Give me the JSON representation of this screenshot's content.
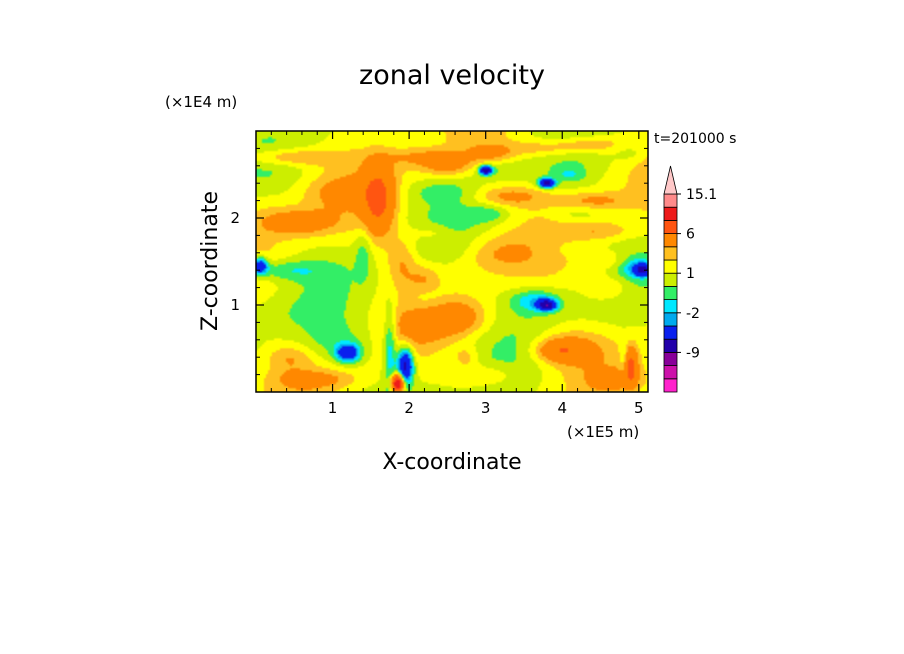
{
  "chart_data": {
    "type": "heatmap",
    "title": "zonal velocity",
    "xlabel": "X-coordinate",
    "ylabel": "Z-coordinate",
    "x_unit": "(×1E5 m)",
    "y_unit": "(×1E4 m)",
    "time_label": "t=201000 s",
    "x_ticks": [
      1,
      2,
      3,
      4,
      5
    ],
    "y_ticks": [
      1,
      2
    ],
    "xlim": [
      0,
      5.12
    ],
    "ylim": [
      0,
      3.0
    ],
    "grid": false,
    "colorbar": {
      "levels": [
        -15,
        -12,
        -9,
        -6,
        -3,
        -2,
        -1,
        0,
        1,
        2,
        3,
        6,
        9,
        12,
        15.1
      ],
      "tick_labels": [
        "15.1",
        "6",
        "1",
        "-2",
        "-9"
      ],
      "colors": [
        "#ff22cc",
        "#cc11aa",
        "#880099",
        "#2200aa",
        "#0a20ee",
        "#00aaee",
        "#00e8ff",
        "#33ee66",
        "#ccee00",
        "#ffff00",
        "#ffc020",
        "#ff8800",
        "#ff5511",
        "#ee1a1a",
        "#ff8a8a",
        "#ffc8c8"
      ],
      "extend": "both"
    },
    "blobs": [
      {
        "x": 0.45,
        "y": 2.7,
        "rx": 0.6,
        "ry": 0.1,
        "v": 2.5
      },
      {
        "x": 0.35,
        "y": 1.4,
        "rx": 0.55,
        "ry": 0.12,
        "v": -2
      },
      {
        "x": 0.05,
        "y": 1.45,
        "rx": 0.1,
        "ry": 0.1,
        "v": -6
      },
      {
        "x": 0.3,
        "y": 0.9,
        "rx": 0.6,
        "ry": 0.2,
        "v": -0.5
      },
      {
        "x": 0.15,
        "y": 2.15,
        "rx": 0.3,
        "ry": 0.2,
        "v": 0.5
      },
      {
        "x": 1.1,
        "y": 2.3,
        "rx": 0.5,
        "ry": 0.18,
        "v": 1.5
      },
      {
        "x": 0.55,
        "y": 1.95,
        "rx": 0.5,
        "ry": 0.15,
        "v": 3
      },
      {
        "x": 1.05,
        "y": 0.55,
        "rx": 0.5,
        "ry": 0.25,
        "v": -1.5
      },
      {
        "x": 1.2,
        "y": 0.45,
        "rx": 0.15,
        "ry": 0.1,
        "v": -6
      },
      {
        "x": 1.75,
        "y": 0.5,
        "rx": 0.08,
        "ry": 0.5,
        "v": -3
      },
      {
        "x": 1.95,
        "y": 0.3,
        "rx": 0.1,
        "ry": 0.2,
        "v": -8
      },
      {
        "x": 1.85,
        "y": 0.1,
        "rx": 0.08,
        "ry": 0.1,
        "v": 12
      },
      {
        "x": 1.6,
        "y": 2.2,
        "rx": 0.2,
        "ry": 0.4,
        "v": 5
      },
      {
        "x": 2.2,
        "y": 2.7,
        "rx": 0.5,
        "ry": 0.1,
        "v": 1.8
      },
      {
        "x": 2.5,
        "y": 2.6,
        "rx": 0.35,
        "ry": 0.12,
        "v": 2.5
      },
      {
        "x": 2.4,
        "y": 2.3,
        "rx": 0.5,
        "ry": 0.12,
        "v": -1
      },
      {
        "x": 2.45,
        "y": 1.9,
        "rx": 0.35,
        "ry": 0.12,
        "v": -1
      },
      {
        "x": 2.35,
        "y": 1.85,
        "rx": 0.3,
        "ry": 0.12,
        "v": 1.8
      },
      {
        "x": 2.25,
        "y": 1.05,
        "rx": 0.3,
        "ry": 0.18,
        "v": -1
      },
      {
        "x": 2.6,
        "y": 0.85,
        "rx": 0.4,
        "ry": 0.2,
        "v": 3
      },
      {
        "x": 2.1,
        "y": 0.75,
        "rx": 0.3,
        "ry": 0.2,
        "v": 1.5
      },
      {
        "x": 2.75,
        "y": 0.4,
        "rx": 0.15,
        "ry": 0.12,
        "v": 1.5
      },
      {
        "x": 2.2,
        "y": 1.3,
        "rx": 0.2,
        "ry": 0.15,
        "v": 1.5
      },
      {
        "x": 2.5,
        "y": 1.65,
        "rx": 0.4,
        "ry": 0.12,
        "v": -0.5
      },
      {
        "x": 3.1,
        "y": 1.6,
        "rx": 0.45,
        "ry": 0.2,
        "v": 1.5
      },
      {
        "x": 3.3,
        "y": 2.25,
        "rx": 0.5,
        "ry": 0.12,
        "v": 2.5
      },
      {
        "x": 3.05,
        "y": 2.05,
        "rx": 0.25,
        "ry": 0.1,
        "v": -1.5
      },
      {
        "x": 3.2,
        "y": 2.55,
        "rx": 0.4,
        "ry": 0.1,
        "v": -1
      },
      {
        "x": 3.05,
        "y": 2.75,
        "rx": 0.3,
        "ry": 0.1,
        "v": 2
      },
      {
        "x": 3.75,
        "y": 2.8,
        "rx": 0.5,
        "ry": 0.1,
        "v": 1.8
      },
      {
        "x": 4.35,
        "y": 2.85,
        "rx": 0.45,
        "ry": 0.1,
        "v": 2.2
      },
      {
        "x": 3.0,
        "y": 2.55,
        "rx": 0.08,
        "ry": 0.05,
        "v": -9
      },
      {
        "x": 3.8,
        "y": 2.4,
        "rx": 0.1,
        "ry": 0.05,
        "v": -9
      },
      {
        "x": 4.1,
        "y": 2.5,
        "rx": 0.2,
        "ry": 0.08,
        "v": -1.5
      },
      {
        "x": 4.2,
        "y": 2.05,
        "rx": 0.3,
        "ry": 0.1,
        "v": -1
      },
      {
        "x": 4.4,
        "y": 2.2,
        "rx": 0.45,
        "ry": 0.1,
        "v": 2
      },
      {
        "x": 4.5,
        "y": 1.85,
        "rx": 0.4,
        "ry": 0.1,
        "v": 1.6
      },
      {
        "x": 4.0,
        "y": 1.65,
        "rx": 0.3,
        "ry": 0.12,
        "v": -0.5
      },
      {
        "x": 4.7,
        "y": 1.5,
        "rx": 0.35,
        "ry": 0.12,
        "v": 1.5
      },
      {
        "x": 4.95,
        "y": 1.45,
        "rx": 0.25,
        "ry": 0.12,
        "v": -2.5
      },
      {
        "x": 5.05,
        "y": 1.4,
        "rx": 0.12,
        "ry": 0.07,
        "v": -6
      },
      {
        "x": 3.65,
        "y": 1.05,
        "rx": 0.5,
        "ry": 0.25,
        "v": -0.8
      },
      {
        "x": 3.65,
        "y": 1.05,
        "rx": 0.3,
        "ry": 0.12,
        "v": -2.5
      },
      {
        "x": 3.8,
        "y": 1.0,
        "rx": 0.12,
        "ry": 0.06,
        "v": -8
      },
      {
        "x": 4.6,
        "y": 1.2,
        "rx": 0.3,
        "ry": 0.15,
        "v": 1.8
      },
      {
        "x": 4.1,
        "y": 0.5,
        "rx": 0.45,
        "ry": 0.22,
        "v": 2.2
      },
      {
        "x": 3.95,
        "y": 0.48,
        "rx": 0.3,
        "ry": 0.12,
        "v": 3
      },
      {
        "x": 3.0,
        "y": 0.2,
        "rx": 0.4,
        "ry": 0.12,
        "v": 1.5
      },
      {
        "x": 4.7,
        "y": 0.15,
        "rx": 0.35,
        "ry": 0.12,
        "v": 1.5
      },
      {
        "x": 4.8,
        "y": 0.4,
        "rx": 0.05,
        "ry": 0.2,
        "v": -1.5
      },
      {
        "x": 4.9,
        "y": 0.3,
        "rx": 0.08,
        "ry": 0.2,
        "v": 5
      },
      {
        "x": 0.8,
        "y": 0.15,
        "rx": 0.5,
        "ry": 0.1,
        "v": 1.8
      },
      {
        "x": 0.45,
        "y": 0.4,
        "rx": 0.3,
        "ry": 0.15,
        "v": 1.5
      },
      {
        "x": 1.9,
        "y": 1.5,
        "rx": 0.2,
        "ry": 0.3,
        "v": 2
      },
      {
        "x": 1.4,
        "y": 1.6,
        "rx": 0.1,
        "ry": 0.3,
        "v": -1.5
      },
      {
        "x": 4.9,
        "y": 2.75,
        "rx": 0.2,
        "ry": 0.1,
        "v": -1
      }
    ]
  }
}
